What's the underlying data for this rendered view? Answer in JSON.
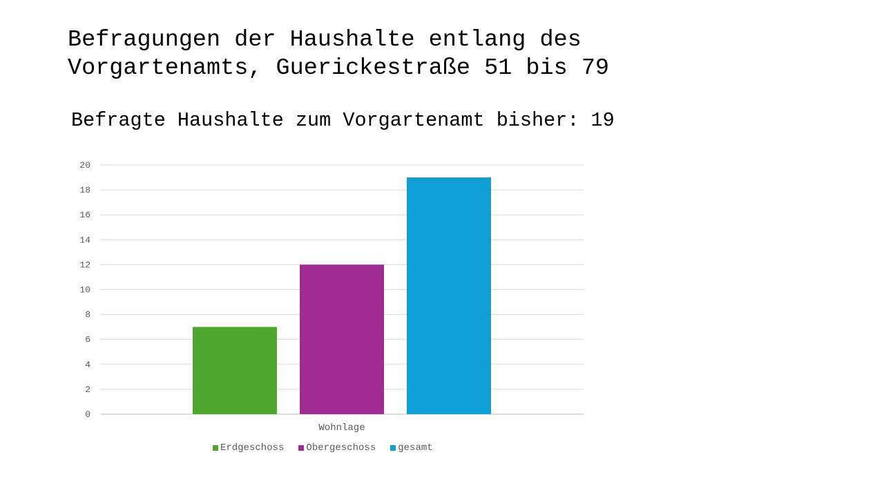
{
  "slide": {
    "title_line1": "Befragungen der Haushalte entlang des",
    "title_line2": "Vorgartenamts, Guerickestraße 51 bis 79"
  },
  "chart_data": {
    "type": "bar",
    "title": "Befragte Haushalte zum Vorgartenamt bisher: 19",
    "xlabel": "Wohnlage",
    "ylabel": "",
    "categories": [
      "Wohnlage"
    ],
    "series": [
      {
        "name": "Erdgeschoss",
        "values": [
          7
        ],
        "color": "#4ea72e"
      },
      {
        "name": "Obergeschoss",
        "values": [
          12
        ],
        "color": "#a02b93"
      },
      {
        "name": "gesamt",
        "values": [
          19
        ],
        "color": "#0f9ed5"
      }
    ],
    "ylim": [
      0,
      20
    ],
    "yticks": [
      0,
      2,
      4,
      6,
      8,
      10,
      12,
      14,
      16,
      18,
      20
    ],
    "grid": true,
    "legend_position": "bottom"
  }
}
